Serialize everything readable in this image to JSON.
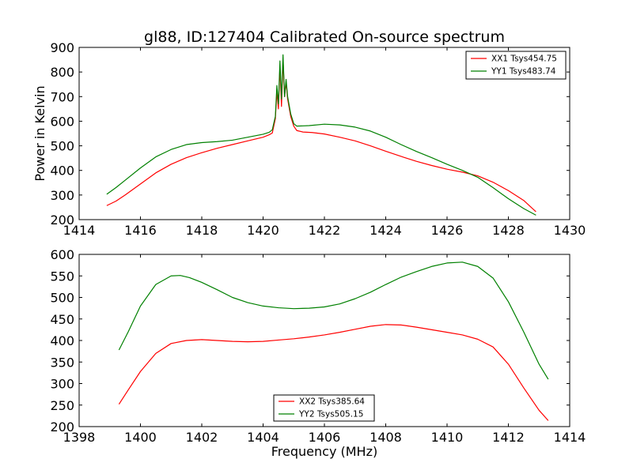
{
  "chart_data": [
    {
      "type": "line",
      "title": "gl88, ID:127404 Calibrated On-source spectrum",
      "xlabel": "",
      "ylabel": "Power in Kelvin",
      "xlim": [
        1414,
        1430
      ],
      "ylim": [
        200,
        900
      ],
      "xticks": [
        1414,
        1416,
        1418,
        1420,
        1422,
        1424,
        1426,
        1428,
        1430
      ],
      "yticks": [
        200,
        300,
        400,
        500,
        600,
        700,
        800,
        900
      ],
      "grid": false,
      "legend_position": "top-right",
      "series": [
        {
          "name": "XX1 Tsys454.75",
          "color": "#ff0000",
          "points": [
            [
              1414.9,
              257
            ],
            [
              1415.2,
              275
            ],
            [
              1415.5,
              300
            ],
            [
              1416.0,
              345
            ],
            [
              1416.5,
              390
            ],
            [
              1417.0,
              425
            ],
            [
              1417.5,
              452
            ],
            [
              1418.0,
              472
            ],
            [
              1418.5,
              490
            ],
            [
              1419.0,
              505
            ],
            [
              1419.5,
              520
            ],
            [
              1420.0,
              535
            ],
            [
              1420.2,
              545
            ],
            [
              1420.3,
              552
            ],
            [
              1420.4,
              610
            ],
            [
              1420.45,
              720
            ],
            [
              1420.5,
              650
            ],
            [
              1420.55,
              820
            ],
            [
              1420.6,
              660
            ],
            [
              1420.65,
              850
            ],
            [
              1420.7,
              700
            ],
            [
              1420.75,
              760
            ],
            [
              1420.8,
              690
            ],
            [
              1420.9,
              620
            ],
            [
              1421.0,
              580
            ],
            [
              1421.1,
              562
            ],
            [
              1421.3,
              556
            ],
            [
              1421.6,
              554
            ],
            [
              1422.0,
              548
            ],
            [
              1422.5,
              535
            ],
            [
              1423.0,
              520
            ],
            [
              1423.5,
              500
            ],
            [
              1424.0,
              478
            ],
            [
              1424.5,
              457
            ],
            [
              1425.0,
              437
            ],
            [
              1425.5,
              420
            ],
            [
              1426.0,
              405
            ],
            [
              1426.5,
              393
            ],
            [
              1427.0,
              378
            ],
            [
              1427.5,
              352
            ],
            [
              1428.0,
              318
            ],
            [
              1428.5,
              278
            ],
            [
              1428.9,
              232
            ]
          ]
        },
        {
          "name": "YY1 Tsys483.74",
          "color": "#008000",
          "points": [
            [
              1414.9,
              303
            ],
            [
              1415.2,
              330
            ],
            [
              1415.5,
              360
            ],
            [
              1416.0,
              410
            ],
            [
              1416.5,
              455
            ],
            [
              1417.0,
              485
            ],
            [
              1417.5,
              505
            ],
            [
              1418.0,
              513
            ],
            [
              1418.5,
              517
            ],
            [
              1419.0,
              523
            ],
            [
              1419.5,
              535
            ],
            [
              1420.0,
              547
            ],
            [
              1420.2,
              555
            ],
            [
              1420.3,
              565
            ],
            [
              1420.4,
              620
            ],
            [
              1420.45,
              745
            ],
            [
              1420.5,
              670
            ],
            [
              1420.55,
              845
            ],
            [
              1420.6,
              690
            ],
            [
              1420.65,
              870
            ],
            [
              1420.7,
              700
            ],
            [
              1420.75,
              770
            ],
            [
              1420.8,
              700
            ],
            [
              1420.9,
              630
            ],
            [
              1421.0,
              590
            ],
            [
              1421.1,
              580
            ],
            [
              1421.5,
              582
            ],
            [
              1422.0,
              588
            ],
            [
              1422.5,
              585
            ],
            [
              1423.0,
              576
            ],
            [
              1423.5,
              560
            ],
            [
              1424.0,
              535
            ],
            [
              1424.5,
              505
            ],
            [
              1425.0,
              477
            ],
            [
              1425.5,
              452
            ],
            [
              1426.0,
              425
            ],
            [
              1426.5,
              400
            ],
            [
              1427.0,
              372
            ],
            [
              1427.5,
              330
            ],
            [
              1428.0,
              285
            ],
            [
              1428.5,
              245
            ],
            [
              1428.9,
              218
            ]
          ]
        }
      ]
    },
    {
      "type": "line",
      "title": "",
      "xlabel": "Frequency (MHz)",
      "ylabel": "",
      "xlim": [
        1398,
        1414
      ],
      "ylim": [
        200,
        600
      ],
      "xticks": [
        1398,
        1400,
        1402,
        1404,
        1406,
        1408,
        1410,
        1412,
        1414
      ],
      "yticks": [
        200,
        250,
        300,
        350,
        400,
        450,
        500,
        550,
        600
      ],
      "grid": false,
      "legend_position": "bottom-center",
      "series": [
        {
          "name": "XX2 Tsys385.64",
          "color": "#ff0000",
          "points": [
            [
              1399.3,
              252
            ],
            [
              1399.6,
              285
            ],
            [
              1400.0,
              328
            ],
            [
              1400.5,
              370
            ],
            [
              1401.0,
              393
            ],
            [
              1401.5,
              400
            ],
            [
              1402.0,
              402
            ],
            [
              1402.5,
              400
            ],
            [
              1403.0,
              398
            ],
            [
              1403.5,
              397
            ],
            [
              1404.0,
              398
            ],
            [
              1404.5,
              401
            ],
            [
              1405.0,
              404
            ],
            [
              1405.5,
              408
            ],
            [
              1406.0,
              413
            ],
            [
              1406.5,
              419
            ],
            [
              1407.0,
              426
            ],
            [
              1407.5,
              433
            ],
            [
              1408.0,
              437
            ],
            [
              1408.5,
              436
            ],
            [
              1409.0,
              431
            ],
            [
              1409.5,
              425
            ],
            [
              1410.0,
              419
            ],
            [
              1410.5,
              413
            ],
            [
              1411.0,
              403
            ],
            [
              1411.5,
              385
            ],
            [
              1412.0,
              345
            ],
            [
              1412.5,
              290
            ],
            [
              1413.0,
              238
            ],
            [
              1413.3,
              214
            ]
          ]
        },
        {
          "name": "YY2 Tsys505.15",
          "color": "#008000",
          "points": [
            [
              1399.3,
              378
            ],
            [
              1399.6,
              420
            ],
            [
              1400.0,
              480
            ],
            [
              1400.5,
              530
            ],
            [
              1401.0,
              550
            ],
            [
              1401.3,
              551
            ],
            [
              1401.6,
              546
            ],
            [
              1402.0,
              535
            ],
            [
              1402.5,
              518
            ],
            [
              1403.0,
              500
            ],
            [
              1403.5,
              488
            ],
            [
              1404.0,
              480
            ],
            [
              1404.5,
              476
            ],
            [
              1405.0,
              474
            ],
            [
              1405.5,
              475
            ],
            [
              1406.0,
              478
            ],
            [
              1406.5,
              485
            ],
            [
              1407.0,
              497
            ],
            [
              1407.5,
              512
            ],
            [
              1408.0,
              530
            ],
            [
              1408.5,
              547
            ],
            [
              1409.0,
              560
            ],
            [
              1409.5,
              572
            ],
            [
              1410.0,
              580
            ],
            [
              1410.5,
              582
            ],
            [
              1411.0,
              572
            ],
            [
              1411.5,
              545
            ],
            [
              1412.0,
              490
            ],
            [
              1412.5,
              420
            ],
            [
              1413.0,
              345
            ],
            [
              1413.3,
              310
            ]
          ]
        }
      ]
    }
  ]
}
